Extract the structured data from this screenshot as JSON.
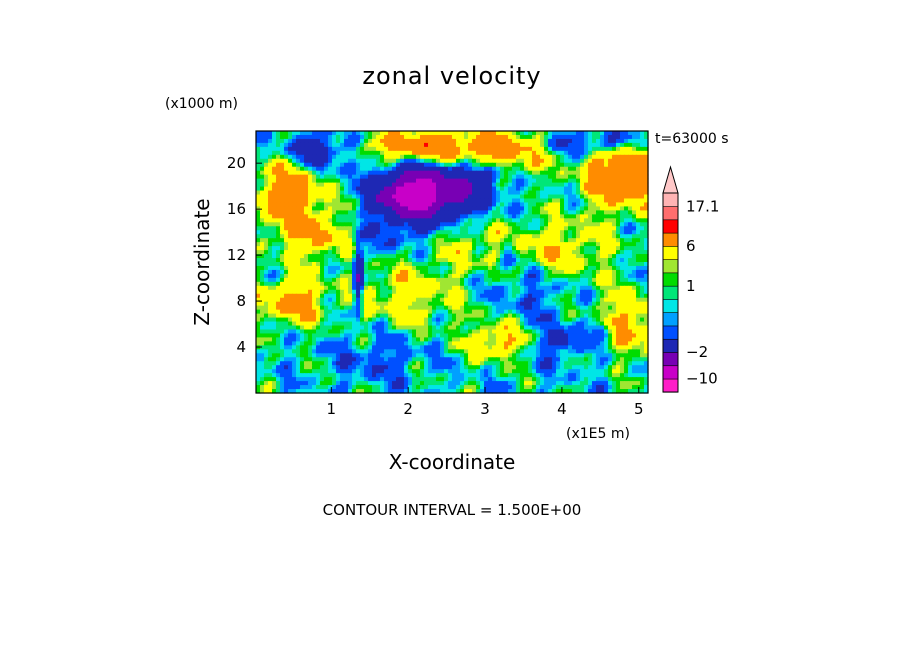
{
  "chart_data": {
    "type": "heatmap",
    "title": "zonal velocity",
    "xlabel": "X-coordinate",
    "ylabel": "Z-coordinate",
    "x_unit": "(x1E5 m)",
    "y_unit": "(x1000 m)",
    "time_label": "t=63000 s",
    "contour_interval_label": "CONTOUR INTERVAL = 1.500E+00",
    "x_ticks": [
      "1",
      "2",
      "3",
      "4",
      "5"
    ],
    "x_tick_values": [
      1,
      2,
      3,
      4,
      5
    ],
    "y_ticks": [
      "4",
      "8",
      "12",
      "16",
      "20"
    ],
    "y_tick_values": [
      4,
      8,
      12,
      16,
      20
    ],
    "xlim": [
      0.02,
      5.12
    ],
    "ylim": [
      0,
      22.8
    ],
    "grid": false,
    "colorbar": {
      "labels": [
        "17.1",
        "6",
        "1",
        "−2",
        "−10"
      ],
      "label_values": [
        17.1,
        6,
        1,
        -2,
        -10
      ],
      "levels": [
        -14.5,
        -10,
        -5.5,
        -2,
        -1,
        -0.5,
        0,
        0.5,
        1,
        1.5,
        3,
        6,
        9,
        13,
        17.1
      ],
      "colors": [
        "#ff1ec8",
        "#c800c8",
        "#7800b4",
        "#1e28b4",
        "#0050ff",
        "#00a0ff",
        "#00e6e6",
        "#00e678",
        "#00dc00",
        "#a0e632",
        "#ffff00",
        "#ff8c00",
        "#ff0000",
        "#ff6e6e",
        "#ffb4b4",
        "#ffc8c8"
      ]
    },
    "field": {
      "background": -0.2,
      "features": [
        {
          "x": 0.45,
          "z": 17.5,
          "value": 4.5,
          "sx": 0.35,
          "sz": 2.5
        },
        {
          "x": 2.2,
          "z": 21.5,
          "value": 5.0,
          "sx": 0.6,
          "sz": 1.0
        },
        {
          "x": 3.3,
          "z": 21.0,
          "value": 3.5,
          "sx": 0.4,
          "sz": 1.5
        },
        {
          "x": 4.8,
          "z": 19.0,
          "value": 6.0,
          "sx": 0.35,
          "sz": 2.0
        },
        {
          "x": 0.8,
          "z": 13.5,
          "value": 3.0,
          "sx": 0.3,
          "sz": 1.5
        },
        {
          "x": 0.5,
          "z": 8.0,
          "value": 4.0,
          "sx": 0.3,
          "sz": 1.5
        },
        {
          "x": 3.2,
          "z": 4.5,
          "value": 4.0,
          "sx": 0.3,
          "sz": 1.2
        },
        {
          "x": 4.9,
          "z": 6.0,
          "value": 3.5,
          "sx": 0.35,
          "sz": 2.0
        },
        {
          "x": 2.0,
          "z": 8.5,
          "value": 2.5,
          "sx": 0.5,
          "sz": 2.0
        },
        {
          "x": 4.0,
          "z": 12.5,
          "value": 2.5,
          "sx": 0.5,
          "sz": 2.0
        },
        {
          "x": 2.7,
          "z": 13.0,
          "value": 2.0,
          "sx": 0.5,
          "sz": 1.5
        },
        {
          "x": 2.3,
          "z": 17.5,
          "value": -9.0,
          "sx": 0.45,
          "sz": 1.5
        },
        {
          "x": 2.0,
          "z": 17.2,
          "value": -6.0,
          "sx": 0.25,
          "sz": 1.2
        },
        {
          "x": 0.8,
          "z": 21.0,
          "value": -4.0,
          "sx": 0.35,
          "sz": 1.2
        },
        {
          "x": 4.5,
          "z": 21.8,
          "value": -3.0,
          "sx": 0.5,
          "sz": 0.8
        },
        {
          "x": 1.35,
          "z": 10.0,
          "value": -6.0,
          "sx": 0.04,
          "sz": 2.0
        },
        {
          "x": 2.0,
          "z": 14.0,
          "value": -2.0,
          "sx": 0.4,
          "sz": 1.5
        },
        {
          "x": 1.6,
          "z": 3.0,
          "value": -1.5,
          "sx": 0.4,
          "sz": 1.5
        },
        {
          "x": 3.9,
          "z": 4.5,
          "value": -1.5,
          "sx": 0.5,
          "sz": 1.5
        },
        {
          "x": 3.6,
          "z": 9.0,
          "value": -1.5,
          "sx": 0.35,
          "sz": 1.5
        },
        {
          "x": 4.0,
          "z": 4.5,
          "value": -3.0,
          "sx": 0.08,
          "sz": 0.5
        },
        {
          "x": 4.5,
          "z": 5.5,
          "value": -3.0,
          "sx": 0.08,
          "sz": 0.5
        },
        {
          "x": 3.3,
          "z": 12.0,
          "value": -2.5,
          "sx": 0.08,
          "sz": 1.0
        },
        {
          "x": 3.0,
          "z": 19.0,
          "value": -3.0,
          "sx": 0.15,
          "sz": 0.8
        }
      ]
    }
  }
}
